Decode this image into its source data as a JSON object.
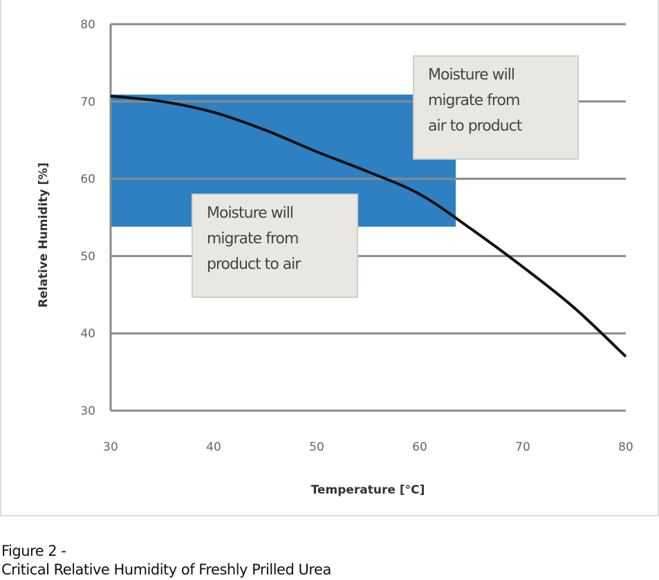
{
  "chart_data": {
    "type": "line",
    "xlabel": "Temperature [°C]",
    "ylabel": "Relative Humidity [%]",
    "xlim": [
      30,
      80
    ],
    "ylim": [
      30,
      80
    ],
    "x_ticks": [
      "30",
      "40",
      "50",
      "60",
      "70",
      "80"
    ],
    "y_ticks": [
      "30",
      "40",
      "50",
      "60",
      "70",
      "80"
    ],
    "grid": "horizontal",
    "series": [
      {
        "x": [
          30,
          35,
          40,
          45,
          50,
          55,
          60,
          65,
          70,
          75,
          80
        ],
        "y": [
          70.7,
          70.0,
          68.6,
          66.3,
          63.5,
          60.9,
          58.0,
          53.5,
          48.6,
          43.3,
          37.0
        ],
        "color": "#111111"
      }
    ],
    "shaded_region": {
      "x": [
        30,
        63.5
      ],
      "y": [
        53.8,
        70.9
      ],
      "color": "#2f80c3"
    },
    "annotations": [
      {
        "text": "Moisture will\nmigrate from\nair to product"
      },
      {
        "text": "Moisture will\nmigrate from\nproduct to air"
      }
    ]
  },
  "caption": {
    "line1": "Figure 2 -",
    "line2": "Critical Relative Humidity of Freshly Prilled Urea"
  }
}
